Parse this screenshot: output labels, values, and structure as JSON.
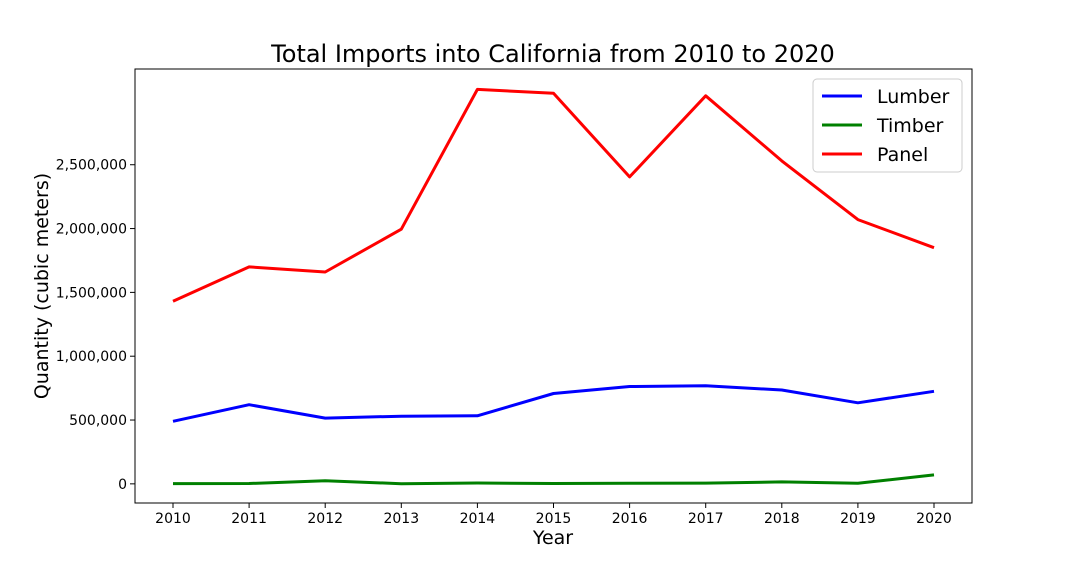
{
  "chart_data": {
    "type": "line",
    "title": "Total Imports into California from 2010 to 2020",
    "xlabel": "Year",
    "ylabel": "Quantity (cubic meters)",
    "x": [
      "2010",
      "2011",
      "2012",
      "2013",
      "2014",
      "2015",
      "2016",
      "2017",
      "2018",
      "2019",
      "2020"
    ],
    "ylim": [
      -150000,
      3250000
    ],
    "yticks": [
      0,
      500000,
      1000000,
      1500000,
      2000000,
      2500000
    ],
    "ytick_labels": [
      "0",
      "500,000",
      "1,000,000",
      "1,500,000",
      "2,000,000",
      "2,500,000"
    ],
    "grid": false,
    "legend_position": "top-right",
    "series": [
      {
        "name": "Lumber",
        "color": "#0000ff",
        "values": [
          490000,
          620000,
          515000,
          530000,
          533000,
          708000,
          763000,
          768000,
          735000,
          635000,
          725000
        ]
      },
      {
        "name": "Timber",
        "color": "#008000",
        "values": [
          2000,
          3000,
          25000,
          1000,
          7000,
          3000,
          5000,
          6000,
          15000,
          4000,
          70000
        ]
      },
      {
        "name": "Panel",
        "color": "#ff0000",
        "values": [
          1430000,
          1700000,
          1660000,
          1995000,
          3090000,
          3060000,
          2405000,
          3040000,
          2530000,
          2070000,
          1850000
        ]
      }
    ]
  }
}
